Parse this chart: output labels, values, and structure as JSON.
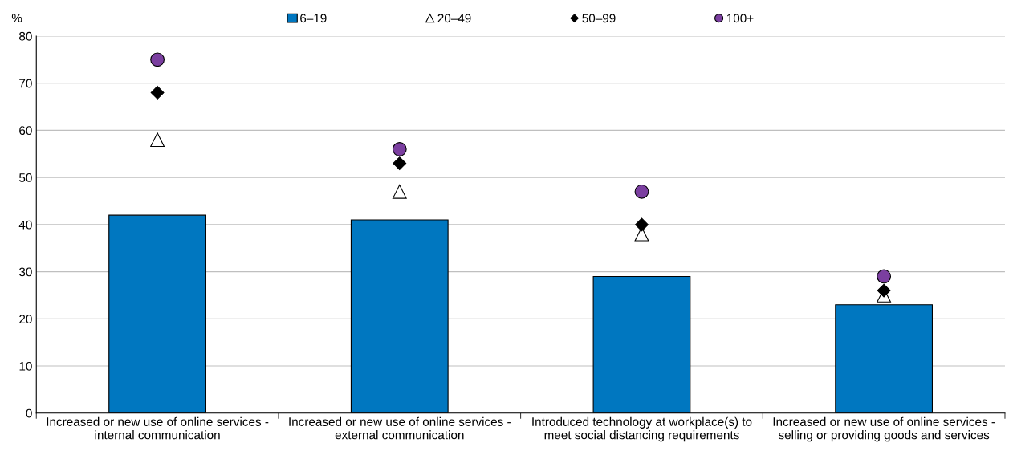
{
  "chart_data": {
    "type": "bar",
    "ylabel": "%",
    "categories": [
      "Increased or new use of online services -\ninternal communication",
      "Increased or new use of online services -\nexternal communication",
      "Introduced technology at workplace(s) to\nmeet social distancing requirements",
      "Increased or new use of online services -\nselling or providing goods and services"
    ],
    "series": [
      {
        "name": "6–19",
        "color": "#0077c0",
        "values": [
          42,
          41,
          29,
          23
        ]
      },
      {
        "name": "20–49",
        "type": "scatter",
        "marker": "triangle",
        "color": "#ffffff",
        "values": [
          58,
          47,
          38,
          25
        ]
      },
      {
        "name": "50–99",
        "type": "scatter",
        "marker": "diamond",
        "color": "#000000",
        "values": [
          68,
          53,
          40,
          26
        ]
      },
      {
        "name": "100+",
        "type": "scatter",
        "marker": "circle",
        "color": "#7b3fa0",
        "values": [
          75,
          56,
          47,
          29
        ]
      }
    ],
    "ylim": [
      0,
      80
    ],
    "yticks": [
      0,
      10,
      20,
      30,
      40,
      50,
      60,
      70,
      80
    ],
    "grid": "y",
    "legend": "top"
  }
}
